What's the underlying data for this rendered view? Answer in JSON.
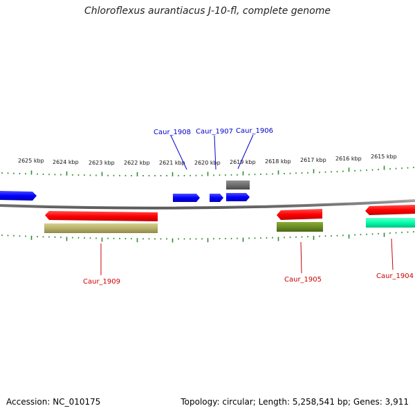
{
  "title": "Chloroflexus aurantiacus J-10-fl, complete genome",
  "footer": {
    "accession": "Accession: NC_010175",
    "topology": "Topology: circular; Length: 5,258,541 bp; Genes: 3,911"
  },
  "colors": {
    "backbone": "#808080",
    "ticks": "#2e8b2e",
    "label_top": "#0000cc",
    "label_bottom": "#cc0000"
  },
  "ruler": {
    "unit": "kbp",
    "labels": [
      "2625 kbp",
      "2624 kbp",
      "2623 kbp",
      "2622 kbp",
      "2621 kbp",
      "2620 kbp",
      "2619 kbp",
      "2618 kbp",
      "2617 kbp",
      "2616 kbp",
      "2615 kbp"
    ]
  },
  "features": [
    {
      "id": "f-left-blue",
      "color": "#0000ff",
      "strand": "top"
    },
    {
      "id": "Caur_1908",
      "color": "#0000ff",
      "strand": "top"
    },
    {
      "id": "Caur_1907",
      "color": "#0000ff",
      "strand": "top"
    },
    {
      "id": "Caur_1906",
      "color": "#0000ff",
      "strand": "top"
    },
    {
      "id": "f-gray",
      "color": "#707070",
      "strand": "top"
    },
    {
      "id": "Caur_1909",
      "color": "#ff0000",
      "strand": "bottom"
    },
    {
      "id": "f-tan",
      "color": "#bdb76b",
      "strand": "bottom"
    },
    {
      "id": "Caur_1905",
      "color": "#ff0000",
      "strand": "bottom"
    },
    {
      "id": "f-olive",
      "color": "#6b8e23",
      "strand": "bottom"
    },
    {
      "id": "Caur_1904",
      "color": "#ff0000",
      "strand": "bottom"
    },
    {
      "id": "f-teal",
      "color": "#00ffaa",
      "strand": "bottom"
    }
  ],
  "labels": {
    "top": [
      "Caur_1908",
      "Caur_1907",
      "Caur_1906"
    ],
    "bottom": [
      "Caur_1909",
      "Caur_1905",
      "Caur_1904"
    ]
  }
}
